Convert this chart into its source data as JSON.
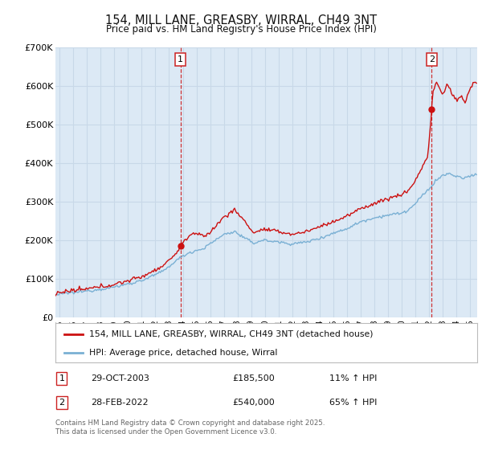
{
  "title": "154, MILL LANE, GREASBY, WIRRAL, CH49 3NT",
  "subtitle": "Price paid vs. HM Land Registry's House Price Index (HPI)",
  "ylim": [
    0,
    700000
  ],
  "yticks": [
    0,
    100000,
    200000,
    300000,
    400000,
    500000,
    600000,
    700000
  ],
  "ytick_labels": [
    "£0",
    "£100K",
    "£200K",
    "£300K",
    "£400K",
    "£500K",
    "£600K",
    "£700K"
  ],
  "xlim_start": 1994.7,
  "xlim_end": 2025.5,
  "background_color": "#ffffff",
  "plot_bg_color": "#dce9f5",
  "grid_color": "#c8d8e8",
  "line_color_hpi": "#7ab0d4",
  "line_color_price": "#cc1111",
  "sale1_date_num": 2003.83,
  "sale1_price": 185500,
  "sale2_date_num": 2022.17,
  "sale2_price": 540000,
  "legend_label_price": "154, MILL LANE, GREASBY, WIRRAL, CH49 3NT (detached house)",
  "legend_label_hpi": "HPI: Average price, detached house, Wirral",
  "footer_line1": "Contains HM Land Registry data © Crown copyright and database right 2025.",
  "footer_line2": "This data is licensed under the Open Government Licence v3.0.",
  "ann1_label": "1",
  "ann1_date": "29-OCT-2003",
  "ann1_price": "£185,500",
  "ann1_hpi": "11% ↑ HPI",
  "ann2_label": "2",
  "ann2_date": "28-FEB-2022",
  "ann2_price": "£540,000",
  "ann2_hpi": "65% ↑ HPI"
}
